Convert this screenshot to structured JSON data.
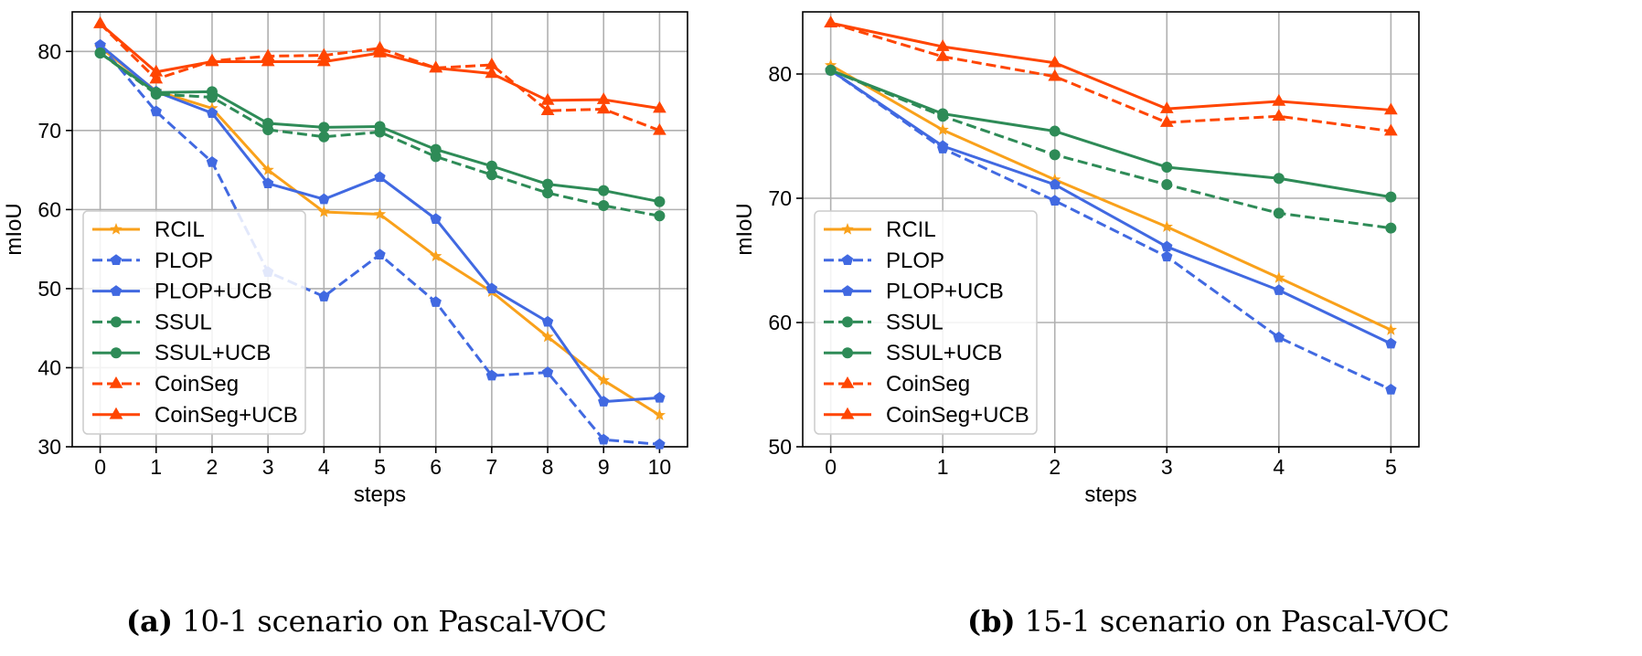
{
  "colors": {
    "RCIL": "#f9a11b",
    "PLOP": "#4169e1",
    "PLOP+UCB": "#4169e1",
    "SSUL": "#2e8b57",
    "SSUL+UCB": "#2e8b57",
    "CoinSeg": "#ff4500",
    "CoinSeg+UCB": "#ff4500"
  },
  "captions": [
    {
      "tag": "(a)",
      "text": "10-1 scenario on Pascal-VOC"
    },
    {
      "tag": "(b)",
      "text": "15-1 scenario on Pascal-VOC"
    }
  ],
  "chart_data": [
    {
      "type": "line",
      "xlabel": "steps",
      "ylabel": "mIoU",
      "x": [
        0,
        1,
        2,
        3,
        4,
        5,
        6,
        7,
        8,
        9,
        10
      ],
      "xlim": [
        -0.5,
        10.5
      ],
      "ylim": [
        30,
        85
      ],
      "yticks": [
        30,
        40,
        50,
        60,
        70,
        80
      ],
      "grid": true,
      "legend": "center-left",
      "series": [
        {
          "name": "RCIL",
          "style": "solid",
          "marker": "star",
          "values": [
            80.5,
            75.0,
            72.8,
            65.0,
            59.7,
            59.4,
            54.1,
            49.6,
            43.9,
            38.4,
            34.0
          ]
        },
        {
          "name": "PLOP",
          "style": "dashed",
          "marker": "pentagon",
          "values": [
            80.8,
            72.4,
            66.0,
            52.1,
            49.0,
            54.3,
            48.3,
            39.0,
            39.4,
            30.9,
            30.3
          ]
        },
        {
          "name": "PLOP+UCB",
          "style": "solid",
          "marker": "pentagon",
          "values": [
            80.8,
            74.9,
            72.2,
            63.3,
            61.3,
            64.1,
            58.8,
            50.0,
            45.8,
            35.7,
            36.2
          ]
        },
        {
          "name": "SSUL",
          "style": "dashed",
          "marker": "circle",
          "values": [
            79.8,
            74.6,
            74.2,
            70.1,
            69.2,
            69.8,
            66.7,
            64.4,
            62.1,
            60.5,
            59.2
          ]
        },
        {
          "name": "SSUL+UCB",
          "style": "solid",
          "marker": "circle",
          "values": [
            79.8,
            74.8,
            74.9,
            70.9,
            70.4,
            70.5,
            67.6,
            65.5,
            63.2,
            62.4,
            61.0
          ]
        },
        {
          "name": "CoinSeg",
          "style": "dashed",
          "marker": "triangle",
          "values": [
            83.5,
            76.5,
            78.8,
            79.4,
            79.5,
            80.4,
            77.9,
            78.3,
            72.5,
            72.7,
            70.0
          ]
        },
        {
          "name": "CoinSeg+UCB",
          "style": "solid",
          "marker": "triangle",
          "values": [
            83.5,
            77.4,
            78.7,
            78.7,
            78.7,
            79.8,
            77.9,
            77.2,
            73.8,
            73.9,
            72.8
          ]
        }
      ]
    },
    {
      "type": "line",
      "xlabel": "steps",
      "ylabel": "mIoU",
      "x": [
        0,
        1,
        2,
        3,
        4,
        5
      ],
      "xlim": [
        -0.25,
        5.25
      ],
      "ylim": [
        50,
        85
      ],
      "yticks": [
        50,
        60,
        70,
        80
      ],
      "grid": true,
      "legend": "center-left",
      "series": [
        {
          "name": "RCIL",
          "style": "solid",
          "marker": "star",
          "values": [
            80.7,
            75.5,
            71.5,
            67.7,
            63.6,
            59.4
          ]
        },
        {
          "name": "PLOP",
          "style": "dashed",
          "marker": "pentagon",
          "values": [
            80.3,
            74.0,
            69.8,
            65.3,
            58.8,
            54.6
          ]
        },
        {
          "name": "PLOP+UCB",
          "style": "solid",
          "marker": "pentagon",
          "values": [
            80.3,
            74.2,
            71.1,
            66.1,
            62.6,
            58.3
          ]
        },
        {
          "name": "SSUL",
          "style": "dashed",
          "marker": "circle",
          "values": [
            80.3,
            76.6,
            73.5,
            71.1,
            68.8,
            67.6
          ]
        },
        {
          "name": "SSUL+UCB",
          "style": "solid",
          "marker": "circle",
          "values": [
            80.3,
            76.8,
            75.4,
            72.5,
            71.6,
            70.1
          ]
        },
        {
          "name": "CoinSeg",
          "style": "dashed",
          "marker": "triangle",
          "values": [
            84.1,
            81.4,
            79.8,
            76.1,
            76.6,
            75.4
          ]
        },
        {
          "name": "CoinSeg+UCB",
          "style": "solid",
          "marker": "triangle",
          "values": [
            84.1,
            82.2,
            80.9,
            77.2,
            77.8,
            77.1
          ]
        }
      ]
    }
  ]
}
